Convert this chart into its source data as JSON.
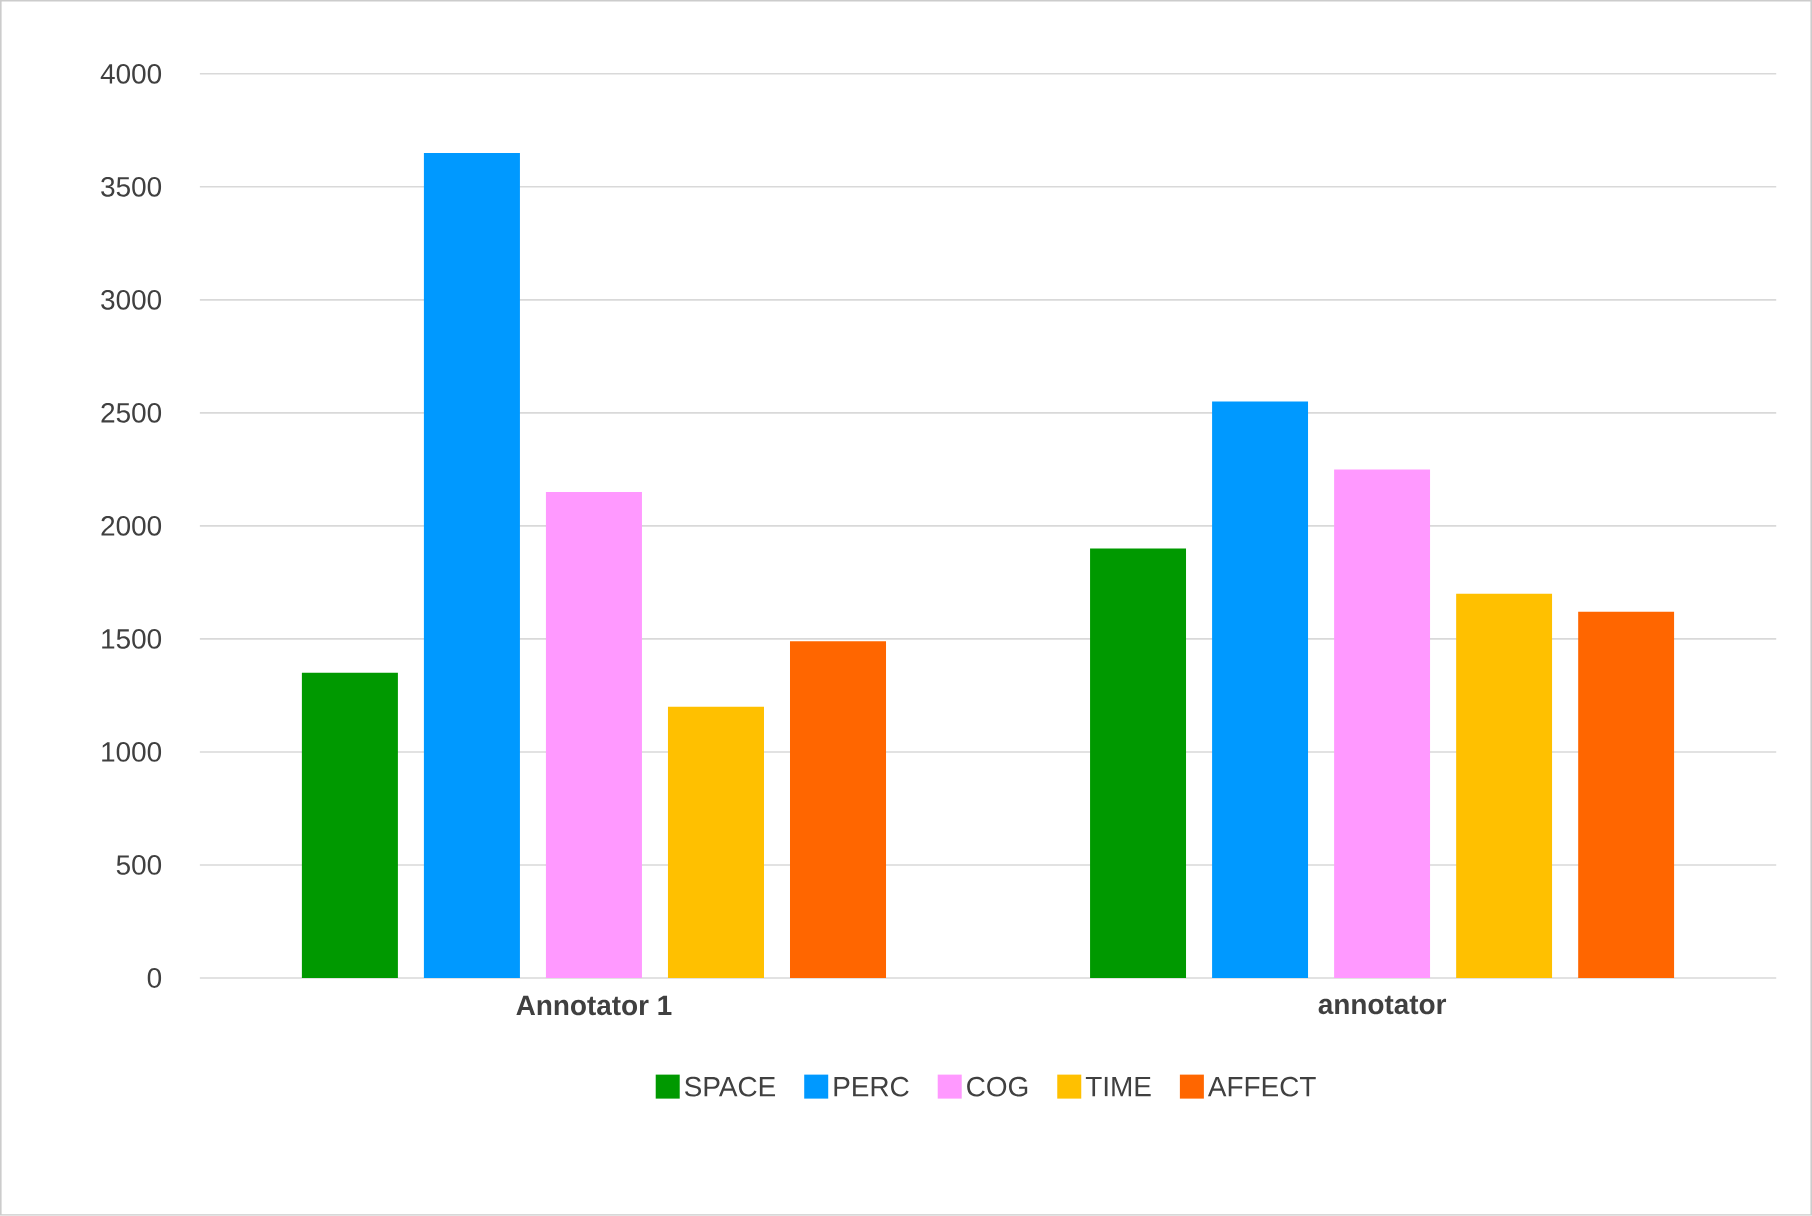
{
  "chart_data": {
    "type": "bar",
    "categories": [
      "**Annotator 1**",
      "**annotator**"
    ],
    "series": [
      {
        "name": "SPACE",
        "color": "#009900",
        "values": [
          1350,
          1900
        ]
      },
      {
        "name": "PERC",
        "color": "#0099ff",
        "values": [
          3650,
          2550
        ]
      },
      {
        "name": "COG",
        "color": "#ff99ff",
        "values": [
          2150,
          2250
        ]
      },
      {
        "name": "TIME",
        "color": "#ffc000",
        "values": [
          1200,
          1700
        ]
      },
      {
        "name": "AFFECT",
        "color": "#ff6600",
        "values": [
          1490,
          1620
        ]
      }
    ],
    "ylim": [
      0,
      4000
    ],
    "yticks": [
      0,
      500,
      1000,
      1500,
      2000,
      2500,
      3000,
      3500,
      4000
    ],
    "grid": "y",
    "legend": "bottom"
  }
}
